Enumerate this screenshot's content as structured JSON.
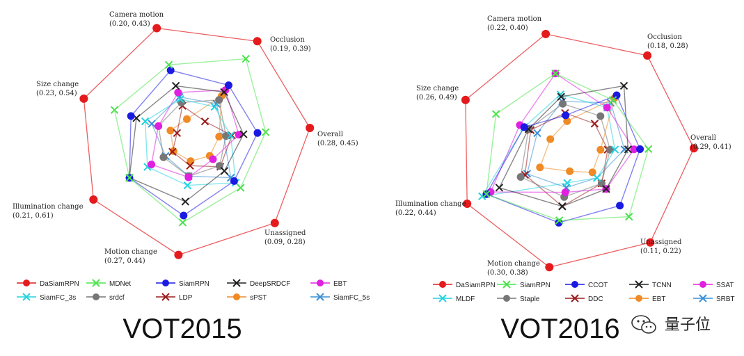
{
  "watermark": {
    "text": "量子位"
  },
  "chart_data": [
    {
      "type": "radar",
      "title": "VOT2015",
      "axes": [
        {
          "name": "Camera motion",
          "range": "(0.20, 0.43)"
        },
        {
          "name": "Occlusion",
          "range": "(0.19, 0.39)"
        },
        {
          "name": "Overall",
          "range": "(0.28, 0.45)"
        },
        {
          "name": "Unassigned",
          "range": "(0.09, 0.28)"
        },
        {
          "name": "Motion change",
          "range": "(0.27, 0.44)"
        },
        {
          "name": "Illumination change",
          "range": "(0.21, 0.61)"
        },
        {
          "name": "Size change",
          "range": "(0.23, 0.54)"
        }
      ],
      "series": [
        {
          "name": "DaSiamRPN",
          "color": "#e41a1c",
          "marker": "circle",
          "values": [
            1.0,
            1.0,
            1.0,
            1.0,
            1.0,
            1.0,
            1.0
          ]
        },
        {
          "name": "MDNet",
          "color": "#4be34b",
          "marker": "x",
          "values": [
            0.67,
            0.82,
            0.62,
            0.58,
            0.72,
            0.64,
            0.72
          ]
        },
        {
          "name": "SiamRPN",
          "color": "#1a1ae3",
          "marker": "circle",
          "values": [
            0.62,
            0.55,
            0.55,
            0.5,
            0.66,
            0.64,
            0.57
          ]
        },
        {
          "name": "DeepSRDCF",
          "color": "#222222",
          "marker": "x",
          "values": [
            0.48,
            0.48,
            0.43,
            0.38,
            0.54,
            0.64,
            0.52
          ]
        },
        {
          "name": "EBT",
          "color": "#e020e0",
          "marker": "circle",
          "values": [
            0.42,
            0.5,
            0.39,
            0.24,
            0.33,
            0.42,
            0.32
          ]
        },
        {
          "name": "SiamFC_3s",
          "color": "#22d3e0",
          "marker": "x",
          "values": [
            0.36,
            0.33,
            0.32,
            0.52,
            0.4,
            0.46,
            0.44
          ]
        },
        {
          "name": "srdcf",
          "color": "#777777",
          "marker": "circle",
          "values": [
            0.33,
            0.4,
            0.28,
            0.32,
            0.32,
            0.3,
            0.32
          ]
        },
        {
          "name": "LDP",
          "color": "#9b1c1c",
          "marker": "x",
          "values": [
            0.3,
            0.18,
            0.33,
            0.33,
            0.23,
            0.21,
            0.15
          ]
        },
        {
          "name": "sPST",
          "color": "#f08a24",
          "marker": "circle",
          "values": [
            0.18,
            0.44,
            0.22,
            0.2,
            0.19,
            0.2,
            0.21
          ]
        },
        {
          "name": "SiamFC_5s",
          "color": "#3a8fd6",
          "marker": "x",
          "values": [
            0.38,
            0.36,
            0.26,
            0.46,
            0.32,
            0.28,
            0.38
          ]
        }
      ]
    },
    {
      "type": "radar",
      "title": "VOT2016",
      "axes": [
        {
          "name": "Camera motion",
          "range": "(0.22, 0.40)"
        },
        {
          "name": "Occlusion",
          "range": "(0.18, 0.28)"
        },
        {
          "name": "Overall",
          "range": "(0.29, 0.41)"
        },
        {
          "name": "Unassigned",
          "range": "(0.11, 0.22)"
        },
        {
          "name": "Motion change",
          "range": "(0.30, 0.38)"
        },
        {
          "name": "Illumination change",
          "range": "(0.22, 0.44)"
        },
        {
          "name": "Size change",
          "range": "(0.26, 0.49)"
        }
      ],
      "series": [
        {
          "name": "DaSiamRPN",
          "color": "#e41a1c",
          "marker": "circle",
          "values": [
            1.0,
            1.0,
            1.0,
            1.0,
            1.0,
            1.0,
            1.0
          ]
        },
        {
          "name": "SiamRPN",
          "color": "#4be34b",
          "marker": "x",
          "values": [
            0.66,
            0.53,
            0.62,
            0.72,
            0.6,
            0.82,
            0.72
          ]
        },
        {
          "name": "CCOT",
          "color": "#1a1ae3",
          "marker": "circle",
          "values": [
            0.3,
            0.58,
            0.55,
            0.6,
            0.62,
            0.82,
            0.46
          ]
        },
        {
          "name": "TCNN",
          "color": "#222222",
          "marker": "x",
          "values": [
            0.46,
            0.68,
            0.45,
            0.42,
            0.48,
            0.7,
            0.42
          ]
        },
        {
          "name": "SSAT",
          "color": "#e020e0",
          "marker": "circle",
          "values": [
            0.66,
            0.45,
            0.5,
            0.42,
            0.36,
            0.78,
            0.5
          ]
        },
        {
          "name": "MLDF",
          "color": "#22d3e0",
          "marker": "x",
          "values": [
            0.48,
            0.45,
            0.34,
            0.3,
            0.28,
            0.86,
            0.46
          ]
        },
        {
          "name": "Staple",
          "color": "#777777",
          "marker": "circle",
          "values": [
            0.4,
            0.36,
            0.3,
            0.36,
            0.4,
            0.5,
            0.42
          ]
        },
        {
          "name": "DDC",
          "color": "#9b1c1c",
          "marker": "x",
          "values": [
            0.32,
            0.28,
            0.28,
            0.36,
            0.48,
            0.46,
            0.4
          ]
        },
        {
          "name": "EBT",
          "color": "#f08a24",
          "marker": "circle",
          "values": [
            0.25,
            0.55,
            0.22,
            0.24,
            0.18,
            0.32,
            0.22
          ]
        },
        {
          "name": "SRBT",
          "color": "#3a8fd6",
          "marker": "x",
          "values": [
            0.42,
            0.5,
            0.42,
            0.3,
            0.32,
            0.44,
            0.34
          ]
        }
      ]
    }
  ]
}
